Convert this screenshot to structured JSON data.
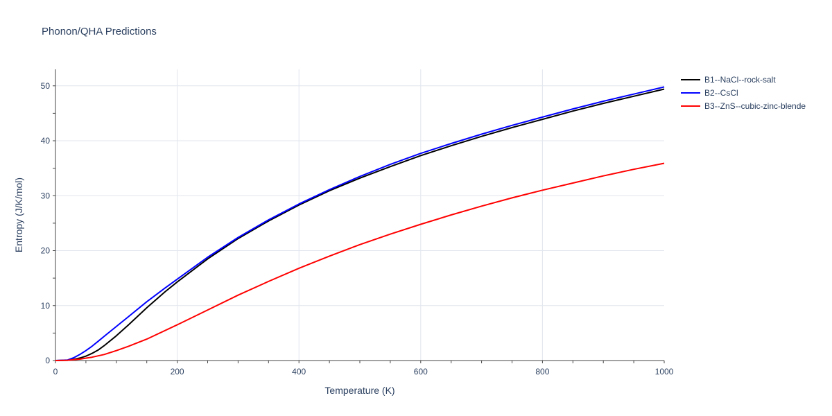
{
  "chart_data": {
    "type": "line",
    "title": "Phonon/QHA Predictions",
    "xlabel": "Temperature (K)",
    "ylabel": "Entropy (J/K/mol)",
    "xlim": [
      0,
      1000
    ],
    "ylim": [
      0,
      53
    ],
    "xticks": [
      0,
      200,
      400,
      600,
      800,
      1000
    ],
    "yticks": [
      0,
      10,
      20,
      30,
      40,
      50
    ],
    "grid": true,
    "legend": "right",
    "series": [
      {
        "name": "B1--NaCl--rock-salt",
        "color": "#000000",
        "x": [
          0,
          20,
          30,
          40,
          50,
          60,
          70,
          80,
          100,
          120,
          150,
          180,
          200,
          250,
          300,
          350,
          400,
          450,
          500,
          550,
          600,
          650,
          700,
          750,
          800,
          850,
          900,
          950,
          1000
        ],
        "y": [
          0,
          0.05,
          0.2,
          0.45,
          0.8,
          1.3,
          1.9,
          2.7,
          4.5,
          6.5,
          9.6,
          12.5,
          14.3,
          18.5,
          22.2,
          25.4,
          28.3,
          30.9,
          33.2,
          35.3,
          37.3,
          39.1,
          40.8,
          42.4,
          43.9,
          45.4,
          46.8,
          48.1,
          49.4
        ]
      },
      {
        "name": "B2--CsCl",
        "color": "#0000ff",
        "x": [
          0,
          20,
          30,
          40,
          50,
          60,
          70,
          80,
          100,
          120,
          150,
          180,
          200,
          250,
          300,
          350,
          400,
          450,
          500,
          550,
          600,
          650,
          700,
          750,
          800,
          850,
          900,
          950,
          1000
        ],
        "y": [
          0,
          0.1,
          0.5,
          1.1,
          1.8,
          2.6,
          3.5,
          4.4,
          6.2,
          8.0,
          10.7,
          13.2,
          14.8,
          18.8,
          22.4,
          25.6,
          28.5,
          31.1,
          33.5,
          35.7,
          37.7,
          39.5,
          41.2,
          42.8,
          44.3,
          45.8,
          47.2,
          48.5,
          49.8
        ]
      },
      {
        "name": "B3--ZnS--cubic-zinc-blende",
        "color": "#ff0000",
        "x": [
          0,
          20,
          40,
          60,
          80,
          100,
          120,
          150,
          200,
          250,
          300,
          350,
          400,
          450,
          500,
          550,
          600,
          650,
          700,
          750,
          800,
          850,
          900,
          950,
          1000
        ],
        "y": [
          0,
          0.05,
          0.25,
          0.6,
          1.1,
          1.8,
          2.6,
          3.9,
          6.5,
          9.2,
          11.9,
          14.4,
          16.8,
          19.0,
          21.1,
          23.0,
          24.8,
          26.5,
          28.1,
          29.6,
          31.0,
          32.3,
          33.6,
          34.8,
          35.9
        ]
      }
    ]
  }
}
